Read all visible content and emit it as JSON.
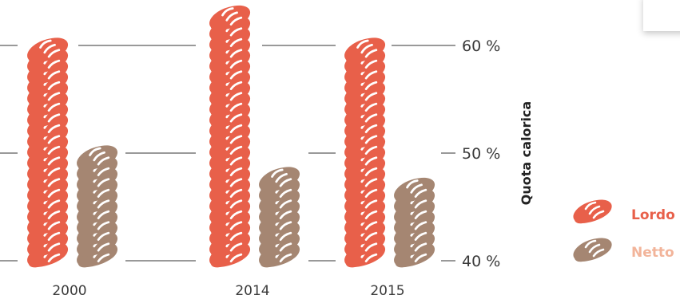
{
  "chart_data": {
    "type": "pictogram-bar",
    "categories": [
      "2000",
      "2014",
      "2015"
    ],
    "series": [
      {
        "name": "Lordo",
        "values": [
          59,
          62,
          59
        ],
        "color": "#e8604a"
      },
      {
        "name": "Netto",
        "values": [
          49,
          47,
          46
        ],
        "color": "#a58672"
      }
    ],
    "icon": "bread-loaf-icon",
    "y_axis": {
      "label": "Quota calorica",
      "ticks": [
        40,
        50,
        60
      ],
      "tick_labels": [
        "40 %",
        "50 %",
        "60 %"
      ],
      "range": [
        40,
        62
      ]
    },
    "legend": {
      "position": "right",
      "items": [
        {
          "label": "Lordo",
          "color": "#e8604a",
          "text_color": "#e8604a"
        },
        {
          "label": "Netto",
          "color": "#a58672",
          "text_color": "#f2b49a"
        }
      ]
    },
    "grid": true
  }
}
